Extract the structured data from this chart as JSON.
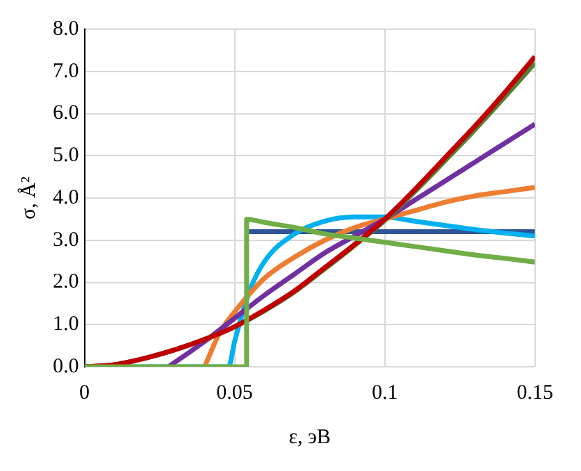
{
  "chart_data": {
    "type": "line",
    "xlabel": "ε, эВ",
    "ylabel": "σ, Å²",
    "xlim": [
      0,
      0.15
    ],
    "xticks": [
      0,
      0.05,
      0.1,
      0.15
    ],
    "ylim": [
      0,
      8
    ],
    "yticks": [
      {
        "value": 0,
        "label": "0.0"
      },
      {
        "value": 1,
        "label": "1.0"
      },
      {
        "value": 2,
        "label": "2.0"
      },
      {
        "value": 3,
        "label": "3.0"
      },
      {
        "value": 4,
        "label": "4.0"
      },
      {
        "value": 5,
        "label": "5.0"
      },
      {
        "value": 6,
        "label": "6.0"
      },
      {
        "value": 7,
        "label": "7.0"
      },
      {
        "value": 8,
        "label": "8.0"
      }
    ],
    "grid": true,
    "legend": false,
    "marker": "none",
    "line_style": "solid",
    "series": [
      {
        "color": "#70ad47",
        "x": [
          0,
          0.054,
          0.054,
          0.06,
          0.07,
          0.08,
          0.09,
          0.1,
          0.11,
          0.12,
          0.13,
          0.14,
          0.15
        ],
        "values": [
          0,
          0,
          3.5,
          3.42,
          3.3,
          3.15,
          3.05,
          2.95,
          2.85,
          2.75,
          2.65,
          2.57,
          2.48
        ]
      },
      {
        "color": "#c00000",
        "x": [
          0,
          0.01,
          0.02,
          0.03,
          0.04,
          0.05,
          0.06,
          0.07,
          0.08,
          0.09,
          0.1,
          0.11,
          0.12,
          0.13,
          0.14,
          0.15
        ],
        "values": [
          0,
          0.05,
          0.2,
          0.4,
          0.65,
          0.95,
          1.35,
          1.8,
          2.35,
          2.9,
          3.5,
          4.2,
          4.95,
          5.7,
          6.5,
          7.35
        ]
      },
      {
        "color": "#548235",
        "x": [
          0,
          0.01,
          0.02,
          0.03,
          0.04,
          0.05,
          0.06,
          0.07,
          0.08,
          0.09,
          0.1,
          0.11,
          0.12,
          0.13,
          0.14,
          0.15
        ],
        "values": [
          0,
          0.05,
          0.2,
          0.4,
          0.65,
          0.95,
          1.33,
          1.78,
          2.32,
          2.88,
          3.47,
          4.15,
          4.88,
          5.62,
          6.4,
          7.2
        ]
      },
      {
        "color": "#7030a0",
        "x": [
          0.028,
          0.04,
          0.05,
          0.06,
          0.07,
          0.08,
          0.09,
          0.1,
          0.11,
          0.12,
          0.13,
          0.14,
          0.15
        ],
        "values": [
          0,
          0.6,
          1.15,
          1.7,
          2.2,
          2.7,
          3.1,
          3.5,
          3.95,
          4.4,
          4.85,
          5.3,
          5.75
        ]
      },
      {
        "color": "#ed7d31",
        "x": [
          0.04,
          0.045,
          0.05,
          0.06,
          0.07,
          0.08,
          0.09,
          0.1,
          0.11,
          0.12,
          0.13,
          0.14,
          0.15
        ],
        "values": [
          0,
          0.8,
          1.3,
          2.1,
          2.6,
          3.0,
          3.3,
          3.5,
          3.7,
          3.9,
          4.05,
          4.15,
          4.25
        ]
      },
      {
        "color": "#00b0f0",
        "x": [
          0,
          0.048,
          0.05,
          0.055,
          0.06,
          0.07,
          0.08,
          0.09,
          0.1,
          0.11,
          0.12,
          0.13,
          0.14,
          0.15
        ],
        "values": [
          0,
          0,
          0.6,
          1.8,
          2.5,
          3.15,
          3.45,
          3.55,
          3.55,
          3.45,
          3.35,
          3.25,
          3.17,
          3.1
        ]
      },
      {
        "color": "#2f5597",
        "x": [
          0.054,
          0.15
        ],
        "values": [
          3.2,
          3.2
        ]
      }
    ]
  }
}
